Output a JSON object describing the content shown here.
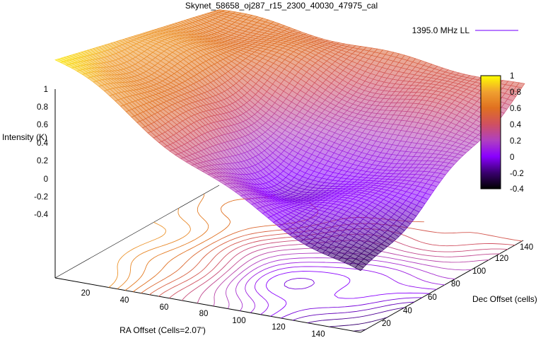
{
  "chart_data": {
    "type": "surface3d",
    "title": "Skynet_58658_oj287_r15_2300_40030_47975_cal",
    "xlabel": "RA Offset (Cells=2.07')",
    "ylabel": "Dec Offset (cells)",
    "zlabel": "Intensity (K)",
    "legend": {
      "label": "1395.0 MHz LL",
      "color": "#8c2cff",
      "placement": "top-right"
    },
    "x_ticks": [
      "20",
      "40",
      "60",
      "80",
      "100",
      "120",
      "140"
    ],
    "y_ticks": [
      "20",
      "40",
      "60",
      "80",
      "100",
      "120",
      "140"
    ],
    "z_ticks": [
      "1",
      "0.8",
      "0.6",
      "0.4",
      "0.2",
      "0",
      "-0.2",
      "-0.4"
    ],
    "colorbar_ticks": [
      "1",
      "0.8",
      "0.6",
      "0.4",
      "0.2",
      "0",
      "-0.2",
      "-0.4"
    ],
    "xlim": [
      0,
      150
    ],
    "ylim": [
      0,
      150
    ],
    "zlim": [
      -0.4,
      1
    ],
    "colormap": [
      "#000000",
      "#3a0070",
      "#8a00ff",
      "#b040c0",
      "#d05060",
      "#e07020",
      "#f0a030",
      "#ffff00"
    ],
    "grid": false,
    "surface_corners": {
      "x0_y150": 0.62,
      "x0_y0": 0.95,
      "x150_y0": -0.3,
      "x150_y150": 0.45
    },
    "trough": {
      "x": 85,
      "y": 60,
      "z": -0.38
    }
  }
}
